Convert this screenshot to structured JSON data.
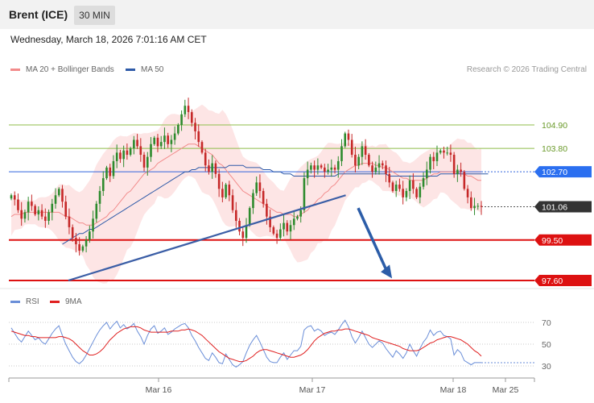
{
  "header": {
    "title": "Brent (ICE)",
    "timeframe": "30 MIN"
  },
  "date": "Wednesday, March 18, 2026 7:01:16 AM CET",
  "legend": {
    "ma20_label": "MA 20 + Bollinger Bands",
    "ma50_label": "MA 50",
    "rsi_label": "RSI",
    "rsi_ma_label": "9MA",
    "copyright": "Research © 2026 Trading Central"
  },
  "colors": {
    "ma20": "#f28b8b",
    "ma50": "#2e5aa8",
    "bollinger_fill": "#fde0e0",
    "bull": "#2e8b2e",
    "bear": "#c62828",
    "support": "#dd1111",
    "pivot": "#3366dd",
    "resistance": "#8fbe4a",
    "rsi": "#6a8ed8",
    "rsi_ma": "#e02020"
  },
  "chart_data": [
    {
      "type": "candlestick",
      "title": "Brent (ICE)",
      "x_ticks": [
        "Mar 16",
        "Mar 17",
        "Mar 18",
        "Mar 25"
      ],
      "y_range": [
        96.8,
        106.5
      ],
      "levels": [
        {
          "value": 104.9,
          "label": "104.90",
          "kind": "resistance"
        },
        {
          "value": 103.8,
          "label": "103.80",
          "kind": "resistance"
        },
        {
          "value": 102.7,
          "label": "102.70",
          "kind": "pivot"
        },
        {
          "value": 101.06,
          "label": "101.06",
          "kind": "last"
        },
        {
          "value": 99.5,
          "label": "99.50",
          "kind": "support"
        },
        {
          "value": 97.6,
          "label": "97.60",
          "kind": "support"
        }
      ],
      "trendline": [
        [
          0.115,
          97.6
        ],
        [
          0.582,
          101.6
        ]
      ],
      "forecast_arrow": [
        [
          0.603,
          101.0
        ],
        [
          0.66,
          97.7
        ]
      ],
      "closes": [
        101.6,
        101.4,
        100.9,
        100.5,
        100.8,
        101.3,
        101.1,
        100.7,
        100.9,
        100.6,
        100.4,
        100.8,
        101.2,
        101.6,
        101.9,
        101.3,
        100.6,
        100.1,
        99.6,
        99.3,
        99.0,
        99.2,
        99.5,
        99.9,
        100.5,
        101.2,
        101.8,
        102.4,
        102.9,
        102.5,
        103.2,
        103.6,
        103.3,
        103.7,
        103.5,
        103.8,
        104.2,
        103.9,
        103.5,
        102.9,
        103.4,
        104.0,
        104.3,
        103.9,
        104.1,
        104.4,
        104.0,
        104.2,
        104.5,
        104.9,
        105.4,
        105.8,
        105.5,
        105.0,
        104.6,
        104.1,
        103.6,
        103.0,
        102.7,
        103.1,
        102.6,
        101.9,
        101.5,
        102.1,
        101.6,
        100.9,
        100.4,
        99.9,
        99.6,
        100.2,
        101.0,
        101.7,
        102.2,
        101.8,
        101.2,
        100.6,
        100.1,
        99.8,
        99.6,
        100.0,
        100.3,
        99.9,
        100.2,
        100.5,
        100.6,
        100.9,
        102.4,
        102.8,
        103.0,
        102.8,
        103.0,
        102.9,
        102.7,
        102.8,
        102.9,
        102.8,
        103.2,
        103.9,
        104.5,
        104.2,
        103.5,
        103.0,
        103.4,
        103.9,
        103.5,
        103.0,
        102.7,
        102.9,
        103.1,
        103.0,
        102.6,
        102.2,
        101.8,
        102.1,
        101.9,
        101.5,
        101.8,
        102.3,
        101.9,
        101.5,
        102.0,
        102.4,
        102.8,
        103.4,
        103.2,
        103.6,
        103.7,
        103.6,
        103.6,
        103.5,
        102.6,
        102.8,
        102.7,
        101.9,
        101.5,
        101.0,
        101.1,
        101.1,
        101.06
      ],
      "ma20": [
        100.6,
        100.7,
        100.7,
        100.7,
        100.8,
        100.8,
        100.8,
        100.8,
        100.8,
        100.8,
        100.8,
        100.8,
        100.8,
        100.8,
        100.8,
        100.7,
        100.6,
        100.6,
        100.5,
        100.4,
        100.3,
        100.3,
        100.2,
        100.2,
        100.2,
        100.3,
        100.4,
        100.5,
        100.6,
        100.8,
        100.9,
        101.1,
        101.3,
        101.5,
        101.7,
        101.8,
        102.0,
        102.2,
        102.4,
        102.6,
        102.7,
        102.8,
        102.9,
        103.1,
        103.2,
        103.3,
        103.4,
        103.5,
        103.6,
        103.7,
        103.8,
        103.9,
        104.0,
        104.0,
        104.0,
        103.9,
        103.8,
        103.7,
        103.6,
        103.5,
        103.3,
        103.1,
        103.0,
        102.8,
        102.6,
        102.4,
        102.2,
        102.0,
        101.8,
        101.7,
        101.6,
        101.5,
        101.4,
        101.3,
        101.2,
        101.1,
        101.0,
        100.9,
        100.8,
        100.8,
        100.7,
        100.7,
        100.7,
        100.6,
        100.6,
        100.7,
        100.8,
        100.9,
        101.1,
        101.2,
        101.4,
        101.5,
        101.7,
        101.8,
        102.0,
        102.1,
        102.3,
        102.5,
        102.7,
        102.8,
        102.9,
        103.0,
        103.0,
        103.1,
        103.1,
        103.1,
        103.1,
        103.0,
        103.0,
        102.9,
        102.9,
        102.8,
        102.7,
        102.6,
        102.5,
        102.4,
        102.4,
        102.3,
        102.3,
        102.3,
        102.3,
        102.3,
        102.4,
        102.5,
        102.6,
        102.6,
        102.7,
        102.7,
        102.7,
        102.7,
        102.7,
        102.7,
        102.6,
        102.6,
        102.5,
        102.5,
        102.4,
        102.3,
        102.3
      ],
      "ma50": [
        null,
        null,
        null,
        null,
        null,
        null,
        null,
        null,
        null,
        null,
        null,
        null,
        null,
        null,
        null,
        99.3,
        99.4,
        99.5,
        99.6,
        99.7,
        99.8,
        99.8,
        99.9,
        100.0,
        100.0,
        100.1,
        100.2,
        100.3,
        100.4,
        100.5,
        100.6,
        100.7,
        100.8,
        100.9,
        101.0,
        101.1,
        101.2,
        101.3,
        101.4,
        101.5,
        101.6,
        101.7,
        101.8,
        101.9,
        102.0,
        102.1,
        102.2,
        102.3,
        102.4,
        102.5,
        102.6,
        102.7,
        102.7,
        102.8,
        102.8,
        102.9,
        102.9,
        102.9,
        102.9,
        102.9,
        102.9,
        102.9,
        102.9,
        102.9,
        103.0,
        103.0,
        103.0,
        103.0,
        103.0,
        102.9,
        102.9,
        102.9,
        102.9,
        102.9,
        102.8,
        102.8,
        102.8,
        102.7,
        102.7,
        102.7,
        102.6,
        102.6,
        102.6,
        102.5,
        102.5,
        102.5,
        102.5,
        102.5,
        102.5,
        102.5,
        102.5,
        102.5,
        102.5,
        102.5,
        102.5,
        102.5,
        102.6,
        102.6,
        102.6,
        102.6,
        102.6,
        102.6,
        102.6,
        102.6,
        102.6,
        102.6,
        102.6,
        102.6,
        102.6,
        102.6,
        102.6,
        102.5,
        102.5,
        102.5,
        102.5,
        102.5,
        102.5,
        102.5,
        102.5,
        102.5,
        102.5,
        102.5,
        102.5,
        102.5,
        102.5,
        102.5,
        102.6,
        102.6,
        102.6,
        102.6,
        102.6,
        102.6,
        102.6,
        102.6,
        102.6,
        102.6,
        102.6,
        102.6,
        102.6,
        102.6,
        102.6
      ]
    },
    {
      "type": "line",
      "title": "RSI",
      "y_ticks": [
        30,
        50,
        70
      ],
      "y_range": [
        23,
        77
      ],
      "series": [
        {
          "name": "RSI",
          "values": [
            65,
            60,
            55,
            52,
            57,
            62,
            58,
            54,
            56,
            52,
            50,
            55,
            60,
            64,
            67,
            58,
            50,
            44,
            38,
            34,
            32,
            35,
            40,
            46,
            52,
            58,
            63,
            67,
            70,
            64,
            68,
            71,
            65,
            68,
            64,
            66,
            69,
            62,
            57,
            50,
            58,
            64,
            67,
            60,
            62,
            65,
            59,
            61,
            64,
            66,
            68,
            69,
            65,
            58,
            53,
            47,
            42,
            37,
            35,
            42,
            38,
            33,
            32,
            41,
            36,
            31,
            29,
            31,
            34,
            42,
            49,
            54,
            58,
            52,
            45,
            38,
            34,
            33,
            33,
            38,
            42,
            36,
            40,
            44,
            44,
            48,
            63,
            66,
            67,
            62,
            64,
            62,
            58,
            60,
            61,
            59,
            63,
            68,
            72,
            66,
            57,
            51,
            56,
            62,
            56,
            50,
            47,
            50,
            53,
            51,
            46,
            42,
            38,
            44,
            41,
            37,
            42,
            50,
            44,
            39,
            46,
            52,
            56,
            63,
            58,
            61,
            62,
            58,
            57,
            55,
            40,
            45,
            42,
            35,
            33,
            31,
            33,
            33,
            33
          ]
        },
        {
          "name": "9MA",
          "values": [
            62,
            61,
            60,
            59,
            58,
            58,
            57,
            57,
            56,
            56,
            56,
            56,
            56,
            56,
            57,
            57,
            56,
            55,
            53,
            50,
            47,
            44,
            42,
            40,
            40,
            41,
            43,
            46,
            50,
            54,
            57,
            60,
            62,
            64,
            65,
            66,
            66,
            66,
            65,
            63,
            62,
            61,
            61,
            61,
            61,
            61,
            61,
            62,
            62,
            62,
            63,
            63,
            64,
            63,
            62,
            60,
            58,
            55,
            52,
            49,
            46,
            43,
            41,
            39,
            37,
            36,
            35,
            34,
            34,
            35,
            37,
            39,
            42,
            44,
            45,
            45,
            44,
            43,
            42,
            41,
            40,
            39,
            38,
            38,
            39,
            40,
            42,
            45,
            49,
            53,
            56,
            58,
            60,
            61,
            62,
            62,
            63,
            63,
            64,
            64,
            63,
            62,
            61,
            60,
            59,
            58,
            56,
            55,
            54,
            53,
            52,
            51,
            50,
            49,
            48,
            46,
            45,
            44,
            44,
            44,
            45,
            47,
            49,
            51,
            52,
            54,
            55,
            56,
            57,
            57,
            56,
            55,
            54,
            52,
            50,
            47,
            44,
            42,
            39
          ]
        }
      ]
    }
  ]
}
